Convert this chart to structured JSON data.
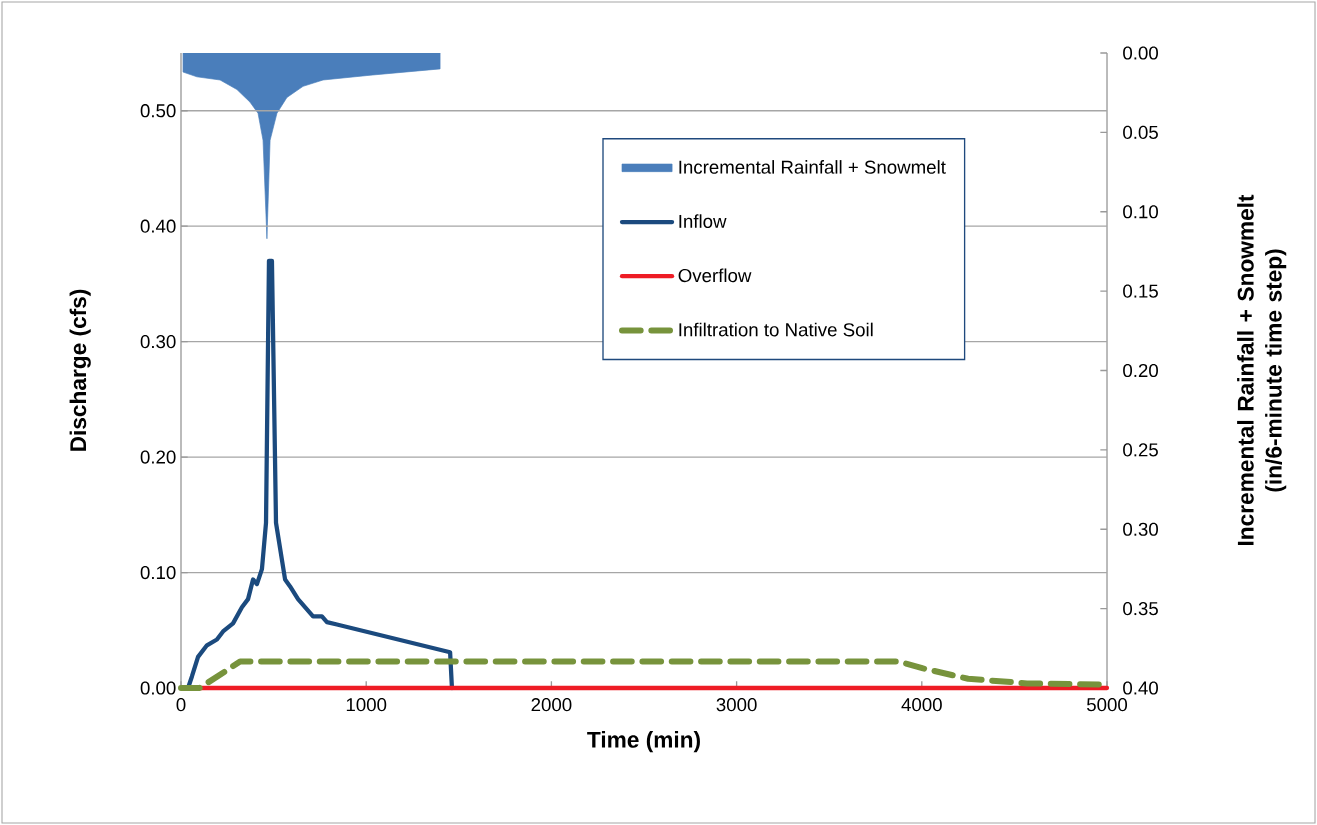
{
  "chart_data": {
    "type": "line",
    "xlabel": "Time (min)",
    "ylabel": "Discharge  (cfs)",
    "y2label": "Incremental Rainfall + Snowmelt (in/6-minute time step)",
    "xlim": [
      0,
      5000
    ],
    "xticks": [
      0,
      1000,
      2000,
      3000,
      4000,
      5000
    ],
    "ylim": [
      0,
      0.55
    ],
    "yticks": [
      {
        "value": 0,
        "label": "0.00"
      },
      {
        "value": 0.1,
        "label": "0.10"
      },
      {
        "value": 0.2,
        "label": "0.20"
      },
      {
        "value": 0.3,
        "label": "0.30"
      },
      {
        "value": 0.4,
        "label": "0.40"
      },
      {
        "value": 0.5,
        "label": "0.50"
      }
    ],
    "y2lim": [
      0.4,
      0
    ],
    "y2ticks": [
      {
        "value": 0,
        "label": "0.00"
      },
      {
        "value": 0.05,
        "label": "0.05"
      },
      {
        "value": 0.1,
        "label": "0.10"
      },
      {
        "value": 0.15,
        "label": "0.15"
      },
      {
        "value": 0.2,
        "label": "0.20"
      },
      {
        "value": 0.25,
        "label": "0.25"
      },
      {
        "value": 0.3,
        "label": "0.30"
      },
      {
        "value": 0.35,
        "label": "0.35"
      },
      {
        "value": 0.4,
        "label": "0.40"
      }
    ],
    "grid": "y",
    "legend": "top right",
    "marker": "none",
    "series": [
      {
        "name": "Incremental Rainfall +  Snowmelt",
        "type": "area",
        "axis": "y2",
        "color": "#4a7ebb",
        "x": [
          11,
          86,
          211,
          302,
          373,
          416,
          443,
          464,
          481,
          518,
          572,
          659,
          767,
          1021,
          1399
        ],
        "values": [
          0.012,
          0.015,
          0.017,
          0.023,
          0.031,
          0.038,
          0.055,
          0.117,
          0.055,
          0.038,
          0.028,
          0.021,
          0.017,
          0.014,
          0.01
        ]
      },
      {
        "name": "Inflow",
        "color": "#1b4a7e",
        "line_style": "solid",
        "x": [
          38,
          59,
          92,
          140,
          194,
          227,
          281,
          329,
          362,
          389,
          410,
          437,
          459,
          475,
          491,
          513,
          562,
          589,
          632,
          713,
          761,
          788,
          842,
          1453,
          1463
        ],
        "values": [
          0,
          0.01,
          0.027,
          0.037,
          0.042,
          0.049,
          0.056,
          0.07,
          0.077,
          0.094,
          0.09,
          0.103,
          0.143,
          0.37,
          0.37,
          0.143,
          0.094,
          0.088,
          0.077,
          0.062,
          0.062,
          0.057,
          0.055,
          0.031,
          0
        ]
      },
      {
        "name": "Overflow",
        "color": "#ee1c25",
        "line_style": "solid",
        "x": [
          0,
          5000
        ],
        "values": [
          0,
          0
        ]
      },
      {
        "name": "Infiltration to Native Soil",
        "color": "#77933c",
        "line_style": "dashed",
        "x": [
          0,
          100,
          254,
          319,
          3872,
          4007,
          4250,
          4568,
          4973
        ],
        "values": [
          0,
          0,
          0.016,
          0.023,
          0.023,
          0.017,
          0.008,
          0.004,
          0.003
        ]
      }
    ]
  }
}
